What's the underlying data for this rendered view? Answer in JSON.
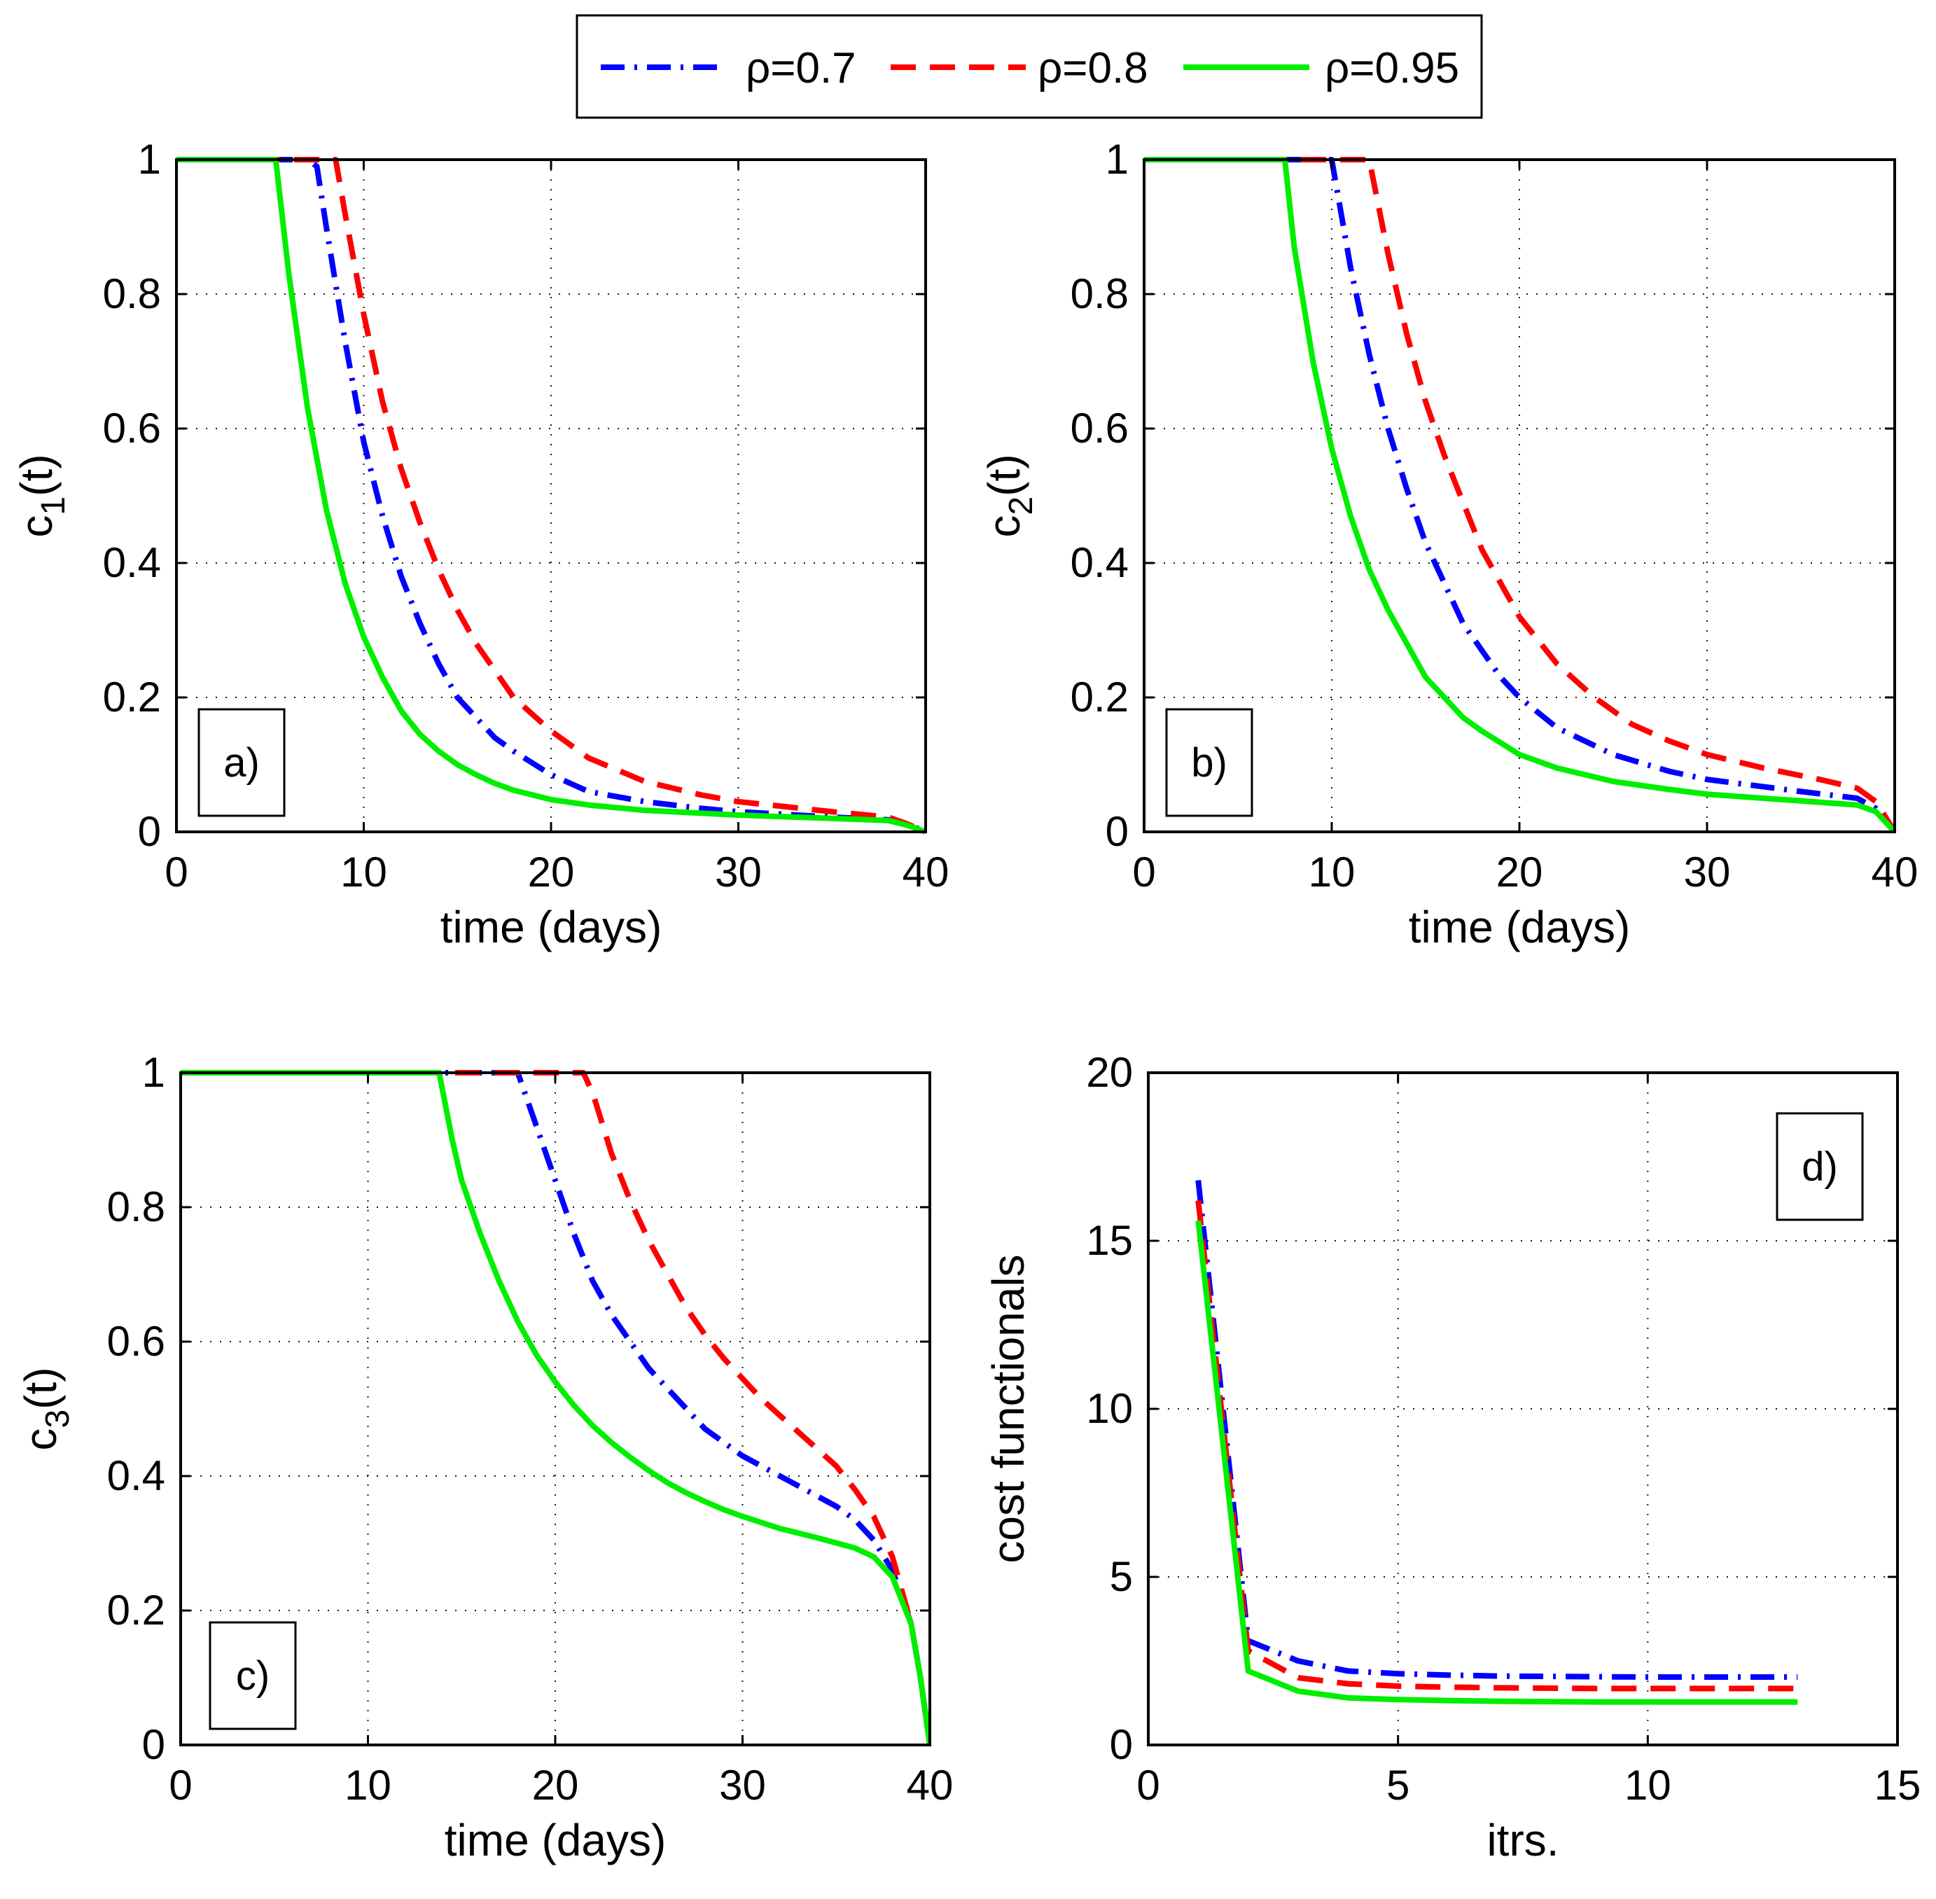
{
  "legend": {
    "entries": [
      {
        "label": "ρ=0.7",
        "color": "#0000ff",
        "style": "dash-dot"
      },
      {
        "label": "ρ=0.8",
        "color": "#ff0000",
        "style": "dashed"
      },
      {
        "label": "ρ=0.95",
        "color": "#00ee00",
        "style": "solid"
      }
    ]
  },
  "chart_data": [
    {
      "id": "a",
      "type": "line",
      "panel_label": "a)",
      "xlabel": "time (days)",
      "ylabel": "c1(t)",
      "ylabel_main": "c",
      "ylabel_sub": "1",
      "ylabel_tail": "(t)",
      "xlim": [
        0,
        40
      ],
      "ylim": [
        0,
        1
      ],
      "xticks": [
        0,
        10,
        20,
        30,
        40
      ],
      "yticks": [
        0,
        0.2,
        0.4,
        0.6,
        0.8,
        1
      ],
      "grid": true,
      "series": [
        {
          "name": "ρ=0.7",
          "color": "#0000ff",
          "style": "dash-dot",
          "x": [
            0,
            7,
            7.5,
            8,
            9,
            10,
            11,
            12,
            13,
            14,
            15,
            16,
            17,
            18,
            20,
            22,
            25,
            28,
            30,
            35,
            38,
            39,
            40
          ],
          "y": [
            1,
            1,
            0.99,
            0.9,
            0.73,
            0.58,
            0.47,
            0.38,
            0.31,
            0.25,
            0.2,
            0.17,
            0.14,
            0.12,
            0.085,
            0.06,
            0.045,
            0.035,
            0.03,
            0.022,
            0.018,
            0.012,
            0
          ]
        },
        {
          "name": "ρ=0.8",
          "color": "#ff0000",
          "style": "dashed",
          "x": [
            0,
            8.5,
            9,
            10,
            11,
            12,
            13,
            14,
            15,
            16,
            17,
            18,
            20,
            22,
            25,
            28,
            30,
            35,
            38,
            39,
            40
          ],
          "y": [
            1,
            1,
            0.92,
            0.77,
            0.64,
            0.54,
            0.46,
            0.39,
            0.33,
            0.28,
            0.24,
            0.2,
            0.15,
            0.11,
            0.075,
            0.055,
            0.045,
            0.03,
            0.022,
            0.012,
            0
          ]
        },
        {
          "name": "ρ=0.95",
          "color": "#00ee00",
          "style": "solid",
          "x": [
            0,
            5.3,
            6,
            7,
            8,
            9,
            10,
            11,
            12,
            13,
            14,
            15,
            16,
            17,
            18,
            20,
            22,
            25,
            30,
            35,
            38,
            39,
            40
          ],
          "y": [
            1,
            1,
            0.83,
            0.63,
            0.48,
            0.37,
            0.29,
            0.23,
            0.18,
            0.145,
            0.12,
            0.1,
            0.085,
            0.072,
            0.062,
            0.048,
            0.04,
            0.032,
            0.025,
            0.02,
            0.017,
            0.01,
            0
          ]
        }
      ]
    },
    {
      "id": "b",
      "type": "line",
      "panel_label": "b)",
      "xlabel": "time (days)",
      "ylabel": "c2(t)",
      "ylabel_main": "c",
      "ylabel_sub": "2",
      "ylabel_tail": "(t)",
      "xlim": [
        0,
        40
      ],
      "ylim": [
        0,
        1
      ],
      "xticks": [
        0,
        10,
        20,
        30,
        40
      ],
      "yticks": [
        0,
        0.2,
        0.4,
        0.6,
        0.8,
        1
      ],
      "grid": true,
      "series": [
        {
          "name": "ρ=0.7",
          "color": "#0000ff",
          "style": "dash-dot",
          "x": [
            0,
            10,
            10.5,
            11,
            12,
            13,
            14,
            15,
            16,
            17,
            18,
            19,
            20,
            22,
            25,
            28,
            30,
            35,
            38,
            39,
            40
          ],
          "y": [
            1,
            1,
            0.92,
            0.84,
            0.71,
            0.6,
            0.51,
            0.43,
            0.37,
            0.31,
            0.27,
            0.23,
            0.2,
            0.155,
            0.115,
            0.09,
            0.078,
            0.06,
            0.05,
            0.035,
            0
          ]
        },
        {
          "name": "ρ=0.8",
          "color": "#ff0000",
          "style": "dashed",
          "x": [
            0,
            12,
            12.5,
            13,
            14,
            15,
            16,
            17,
            18,
            19,
            20,
            22,
            24,
            26,
            28,
            30,
            33,
            36,
            38,
            39,
            40
          ],
          "y": [
            1,
            1,
            0.93,
            0.86,
            0.74,
            0.64,
            0.56,
            0.49,
            0.42,
            0.37,
            0.32,
            0.25,
            0.2,
            0.16,
            0.135,
            0.115,
            0.095,
            0.078,
            0.065,
            0.045,
            0
          ]
        },
        {
          "name": "ρ=0.95",
          "color": "#00ee00",
          "style": "solid",
          "x": [
            0,
            7.5,
            8,
            9,
            10,
            11,
            12,
            13,
            14,
            15,
            16,
            17,
            18,
            20,
            22,
            25,
            28,
            30,
            35,
            38,
            39,
            40
          ],
          "y": [
            1,
            1,
            0.87,
            0.7,
            0.57,
            0.47,
            0.39,
            0.33,
            0.28,
            0.23,
            0.2,
            0.17,
            0.15,
            0.115,
            0.095,
            0.075,
            0.063,
            0.056,
            0.046,
            0.04,
            0.03,
            0
          ]
        }
      ]
    },
    {
      "id": "c",
      "type": "line",
      "panel_label": "c)",
      "xlabel": "time (days)",
      "ylabel": "c3(t)",
      "ylabel_main": "c",
      "ylabel_sub": "3",
      "ylabel_tail": "(t)",
      "xlim": [
        0,
        40
      ],
      "ylim": [
        0,
        1
      ],
      "xticks": [
        0,
        10,
        20,
        30,
        40
      ],
      "yticks": [
        0,
        0.2,
        0.4,
        0.6,
        0.8,
        1
      ],
      "grid": true,
      "series": [
        {
          "name": "ρ=0.7",
          "color": "#0000ff",
          "style": "dash-dot",
          "x": [
            0,
            18,
            19,
            20,
            21,
            22,
            23,
            24,
            25,
            26,
            27,
            28,
            29,
            30,
            31,
            32,
            33,
            34,
            35,
            36,
            37,
            38,
            39,
            39.5,
            40
          ],
          "y": [
            1,
            1,
            0.92,
            0.84,
            0.76,
            0.69,
            0.64,
            0.6,
            0.56,
            0.53,
            0.5,
            0.47,
            0.45,
            0.43,
            0.415,
            0.4,
            0.385,
            0.37,
            0.355,
            0.335,
            0.305,
            0.26,
            0.18,
            0.1,
            0
          ]
        },
        {
          "name": "ρ=0.8",
          "color": "#ff0000",
          "style": "dashed",
          "x": [
            0,
            21.5,
            22,
            23,
            24,
            25,
            26,
            27,
            28,
            29,
            30,
            31,
            32,
            33,
            34,
            35,
            36,
            37,
            38,
            39,
            39.5,
            40
          ],
          "y": [
            1,
            1,
            0.97,
            0.88,
            0.81,
            0.75,
            0.7,
            0.65,
            0.61,
            0.575,
            0.545,
            0.515,
            0.49,
            0.465,
            0.44,
            0.415,
            0.38,
            0.34,
            0.28,
            0.18,
            0.1,
            0
          ]
        },
        {
          "name": "ρ=0.95",
          "color": "#00ee00",
          "style": "solid",
          "x": [
            0,
            13.8,
            14.5,
            15,
            16,
            17,
            18,
            19,
            20,
            21,
            22,
            23,
            24,
            25,
            26,
            27,
            28,
            29,
            30,
            32,
            34,
            36,
            37,
            38,
            39,
            39.5,
            40
          ],
          "y": [
            1,
            1,
            0.9,
            0.84,
            0.76,
            0.69,
            0.63,
            0.58,
            0.54,
            0.505,
            0.475,
            0.45,
            0.428,
            0.408,
            0.39,
            0.375,
            0.362,
            0.35,
            0.34,
            0.322,
            0.308,
            0.293,
            0.28,
            0.25,
            0.18,
            0.1,
            0
          ]
        }
      ]
    },
    {
      "id": "d",
      "type": "line",
      "panel_label": "d)",
      "xlabel": "itrs.",
      "ylabel": "cost functionals",
      "xlim": [
        0,
        15
      ],
      "ylim": [
        0,
        20
      ],
      "xticks": [
        0,
        5,
        10,
        15
      ],
      "yticks": [
        0,
        5,
        10,
        15,
        20
      ],
      "grid": true,
      "series": [
        {
          "name": "ρ=0.7",
          "color": "#0000ff",
          "style": "dash-dot",
          "x": [
            1,
            2,
            3,
            4,
            5,
            6,
            7,
            8,
            9,
            10,
            11,
            12,
            13
          ],
          "y": [
            16.8,
            3.1,
            2.5,
            2.2,
            2.12,
            2.08,
            2.05,
            2.04,
            2.03,
            2.02,
            2.02,
            2.02,
            2.02
          ]
        },
        {
          "name": "ρ=0.8",
          "color": "#ff0000",
          "style": "dashed",
          "x": [
            1,
            2,
            3,
            4,
            5,
            6,
            7,
            8,
            9,
            10,
            11,
            12,
            13
          ],
          "y": [
            16.2,
            2.8,
            2.0,
            1.82,
            1.75,
            1.72,
            1.7,
            1.69,
            1.68,
            1.68,
            1.68,
            1.68,
            1.68
          ]
        },
        {
          "name": "ρ=0.95",
          "color": "#00ee00",
          "style": "solid",
          "x": [
            1,
            2,
            3,
            4,
            5,
            6,
            7,
            8,
            9,
            10,
            11,
            12,
            13
          ],
          "y": [
            15.6,
            2.2,
            1.6,
            1.4,
            1.35,
            1.32,
            1.3,
            1.29,
            1.28,
            1.28,
            1.28,
            1.28,
            1.28
          ]
        }
      ]
    }
  ]
}
